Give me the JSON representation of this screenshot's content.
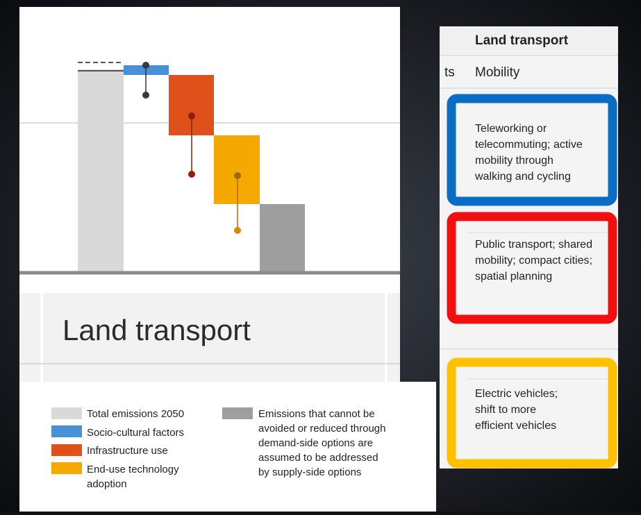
{
  "left_panel": {
    "section_title": "Land transport",
    "legend": [
      {
        "label": [
          "Total emissions 2050"
        ]
      },
      {
        "label": [
          "Socio-cultural factors"
        ]
      },
      {
        "label": [
          "Infrastructure use"
        ]
      },
      {
        "label": [
          "End-use technology",
          "adoption"
        ]
      },
      {
        "label": [
          "Emissions that cannot be",
          "avoided or reduced through",
          "demand-side options are",
          "assumed to be addressed",
          "by supply-side options"
        ]
      }
    ]
  },
  "right_panel": {
    "header": "Land transport",
    "row_label_fragment": "ts",
    "category": "Mobility",
    "rows": [
      {
        "lines": [
          "Teleworking or",
          "telecommuting; active",
          "mobility through",
          "walking and cycling"
        ]
      },
      {
        "lines": [
          "Public transport; shared",
          "mobility; compact cities;",
          "spatial planning"
        ]
      },
      {
        "lines": [
          "Electric vehicles;",
          "shift to more",
          "efficient vehicles"
        ]
      }
    ]
  }
}
